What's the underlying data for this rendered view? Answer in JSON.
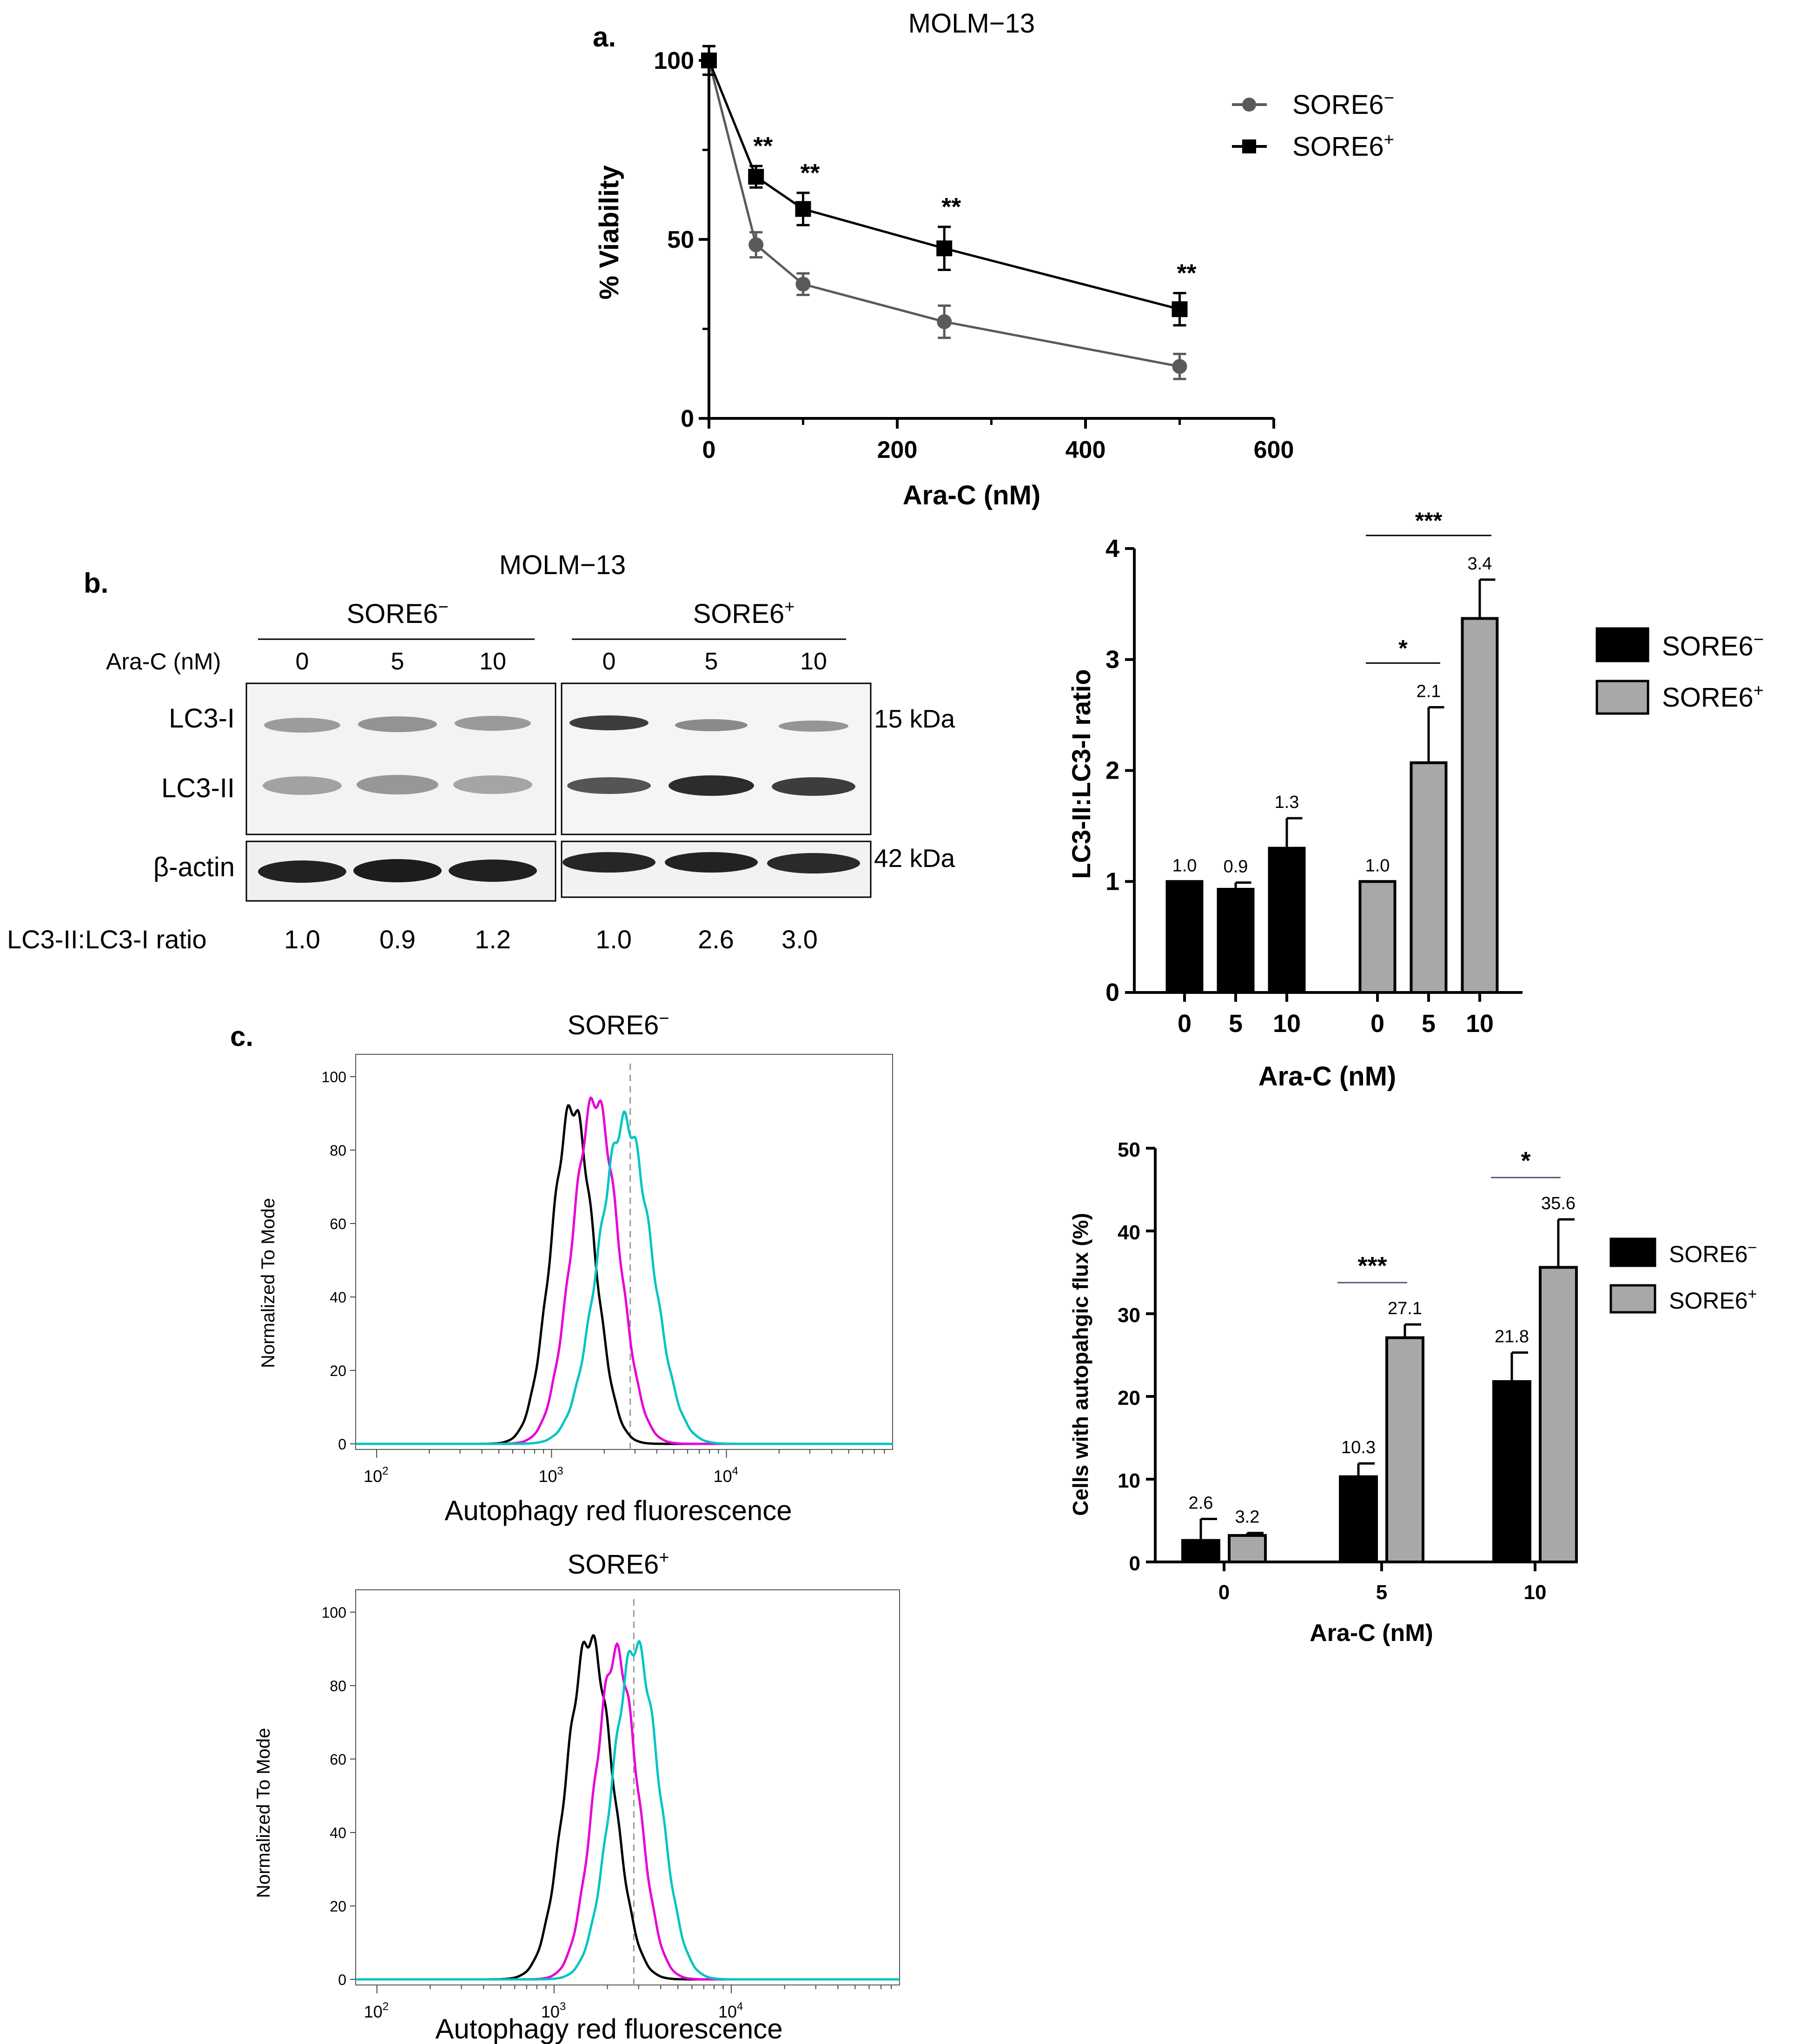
{
  "panel_a": {
    "letter": "a.",
    "chart_data": {
      "type": "line",
      "title": "MOLM−13",
      "xlabel": "Ara-C (nM)",
      "ylabel": "% Viability",
      "xlim": [
        0,
        600
      ],
      "ylim": [
        0,
        100
      ],
      "xticks": [
        "0",
        "200",
        "400",
        "600"
      ],
      "yticks": [
        "0",
        "50",
        "100"
      ],
      "legend_position": "top-right",
      "series": [
        {
          "name_base": "SORE6",
          "name_sup": "−",
          "color": "#5a5a5a",
          "marker": "circle",
          "x": [
            0,
            50,
            100,
            250,
            500
          ],
          "values": [
            100,
            48.5,
            37.5,
            27,
            14.5
          ],
          "err": [
            4,
            3.5,
            3,
            4.5,
            3.5
          ]
        },
        {
          "name_base": "SORE6",
          "name_sup": "+",
          "color": "#000000",
          "marker": "square",
          "x": [
            0,
            50,
            100,
            250,
            500
          ],
          "values": [
            100,
            67.5,
            58.5,
            47.5,
            30.5
          ],
          "err": [
            4,
            3,
            4.5,
            6,
            4.5
          ]
        }
      ],
      "annotations": [
        {
          "x": 50,
          "text": "**"
        },
        {
          "x": 100,
          "text": "**"
        },
        {
          "x": 250,
          "text": "**"
        },
        {
          "x": 500,
          "text": "**"
        }
      ]
    }
  },
  "panel_b": {
    "letter": "b.",
    "blot": {
      "title": "MOLM−13",
      "group1_base": "SORE6",
      "group1_sup": "−",
      "group2_base": "SORE6",
      "group2_sup": "+",
      "conc_label": "Ara-C (nM)",
      "concs": [
        "0",
        "5",
        "10"
      ],
      "row_lc3i": "LC3-I",
      "row_lc3ii": "LC3-II",
      "row_actin": "β-actin",
      "kda_15": "15 kDa",
      "kda_42": "42 kDa",
      "ratio_label": "LC3-II:LC3-I ratio",
      "ratios": [
        "1.0",
        "0.9",
        "1.2",
        "1.0",
        "2.6",
        "3.0"
      ]
    },
    "chart_data": {
      "type": "bar",
      "xlabel": "Ara-C (nM)",
      "ylabel": "LC3-II:LC3-I ratio",
      "ylim": [
        0,
        4
      ],
      "yticks": [
        "0",
        "1",
        "2",
        "3",
        "4"
      ],
      "categories": [
        "0",
        "5",
        "10"
      ],
      "legend_position": "right",
      "series": [
        {
          "name_base": "SORE6",
          "name_sup": "−",
          "color": "#000000",
          "values": [
            1.0,
            0.93,
            1.3
          ],
          "err": [
            0,
            0.06,
            0.27
          ],
          "labels": [
            "1.0",
            "0.9",
            "1.3"
          ]
        },
        {
          "name_base": "SORE6",
          "name_sup": "+",
          "color": "#a8a8a8",
          "values": [
            1.0,
            2.07,
            3.37
          ],
          "err": [
            0,
            0.5,
            0.35
          ],
          "labels": [
            "1.0",
            "2.1",
            "3.4"
          ]
        }
      ],
      "significance": [
        {
          "from": "0",
          "to": "5",
          "text": "*"
        },
        {
          "from": "0",
          "to": "10",
          "text": "***"
        }
      ]
    }
  },
  "panel_c": {
    "letter": "c.",
    "histograms": [
      {
        "title_base": "SORE6",
        "title_sup": "−",
        "xlabel": "Autophagy red fluorescence",
        "ylabel": "Normalized To Mode",
        "yticks": [
          "0",
          "20",
          "40",
          "60",
          "80",
          "100"
        ],
        "xticks": [
          {
            "base": "10",
            "exp": "2"
          },
          {
            "base": "10",
            "exp": "3"
          },
          {
            "base": "10",
            "exp": "4"
          }
        ],
        "curves": [
          {
            "color": "#000000",
            "peak_log": 3.12,
            "width": 0.12,
            "height": 92
          },
          {
            "color": "#e600d6",
            "peak_log": 3.25,
            "width": 0.13,
            "height": 94
          },
          {
            "color": "#00c4c4",
            "peak_log": 3.42,
            "width": 0.15,
            "height": 88
          }
        ]
      },
      {
        "title_base": "SORE6",
        "title_sup": "+",
        "xlabel": "Autophagy red fluorescence",
        "ylabel": "Normalized To Mode",
        "yticks": [
          "0",
          "20",
          "40",
          "60",
          "80",
          "100"
        ],
        "xticks": [
          {
            "base": "10",
            "exp": "2"
          },
          {
            "base": "10",
            "exp": "3"
          },
          {
            "base": "10",
            "exp": "4"
          }
        ],
        "curves": [
          {
            "color": "#000000",
            "peak_log": 3.2,
            "width": 0.13,
            "height": 93
          },
          {
            "color": "#e600d6",
            "peak_log": 3.35,
            "width": 0.12,
            "height": 89
          },
          {
            "color": "#00c4c4",
            "peak_log": 3.46,
            "width": 0.13,
            "height": 91
          }
        ]
      }
    ],
    "chart_data": {
      "type": "bar",
      "xlabel": "Ara-C (nM)",
      "ylabel": "Cells with autopahgic flux (%)",
      "ylim": [
        0,
        50
      ],
      "yticks": [
        "0",
        "10",
        "20",
        "30",
        "40",
        "50"
      ],
      "categories": [
        "0",
        "5",
        "10"
      ],
      "legend_position": "right",
      "series": [
        {
          "name_base": "SORE6",
          "name_sup": "−",
          "color": "#000000",
          "values": [
            2.6,
            10.3,
            21.8
          ],
          "err": [
            2.6,
            1.6,
            3.5
          ],
          "labels": [
            "2.6",
            "10.3",
            "21.8"
          ]
        },
        {
          "name_base": "SORE6",
          "name_sup": "+",
          "color": "#a8a8a8",
          "values": [
            3.2,
            27.1,
            35.6
          ],
          "err": [
            0.3,
            1.6,
            5.8
          ],
          "labels": [
            "3.2",
            "27.1",
            "35.6"
          ]
        }
      ],
      "significance": [
        {
          "category": "5",
          "text": "***"
        },
        {
          "category": "10",
          "text": "*"
        }
      ]
    }
  }
}
